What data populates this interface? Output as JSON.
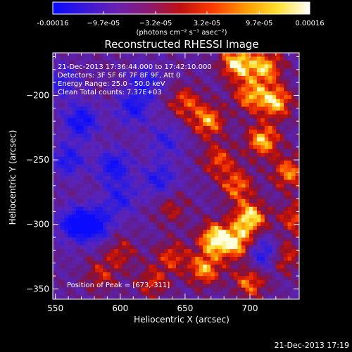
{
  "colorbar": {
    "tick_labels": [
      "-0.00016",
      "−9.7e-05",
      "−3.2e-05",
      "3.2e-05",
      "9.7e-05",
      "0.00016"
    ],
    "tick_values": [
      -0.00016,
      -9.7e-05,
      -3.2e-05,
      3.2e-05,
      9.7e-05,
      0.00016
    ],
    "range": [
      -0.00016,
      0.00016
    ],
    "units_label": "(photons cm⁻² s⁻¹ asec⁻²)",
    "colors": [
      "#0a0aff",
      "#3a18d8",
      "#6a20b0",
      "#8c1a70",
      "#c01010",
      "#ff3c00",
      "#ff9a00",
      "#ffe030",
      "#ffffff"
    ]
  },
  "chart_data": {
    "type": "heatmap",
    "title": "Reconstructed RHESSI Image",
    "xlabel": "Heliocentric X (arcsec)",
    "ylabel": "Heliocentric Y (arcsec)",
    "xlim": [
      548,
      738
    ],
    "ylim": [
      -358,
      -167
    ],
    "x_ticks": [
      550,
      600,
      650,
      700
    ],
    "y_ticks": [
      -200,
      -250,
      -300,
      -350
    ],
    "x_tick_labels": [
      "550",
      "600",
      "650",
      "700"
    ],
    "y_tick_labels": [
      "−200",
      "−250",
      "−300",
      "−350"
    ],
    "annotations": [
      "21-Dec-2013 17:36:44.000 to 17:42:10.000",
      "Detectors: 3F 5F 6F 7F 8F 9F, Att 0",
      "Energy Range: 25.0 - 50.0 keV",
      "Clean     Total counts: 7.37E+03"
    ],
    "peak_label": "Position of Peak = [673,-311]",
    "peak": [
      673,
      -311
    ],
    "hot_spots": [
      {
        "x": 690,
        "y": -175,
        "v": 1.0
      },
      {
        "x": 712,
        "y": -178,
        "v": 0.85
      },
      {
        "x": 720,
        "y": -205,
        "v": 0.9
      },
      {
        "x": 700,
        "y": -200,
        "v": 0.75
      },
      {
        "x": 668,
        "y": -220,
        "v": 0.8
      },
      {
        "x": 650,
        "y": -205,
        "v": 0.6
      },
      {
        "x": 710,
        "y": -235,
        "v": 0.9
      },
      {
        "x": 730,
        "y": -260,
        "v": 0.75
      },
      {
        "x": 690,
        "y": -270,
        "v": 0.7
      },
      {
        "x": 676,
        "y": -250,
        "v": 0.6
      },
      {
        "x": 700,
        "y": -295,
        "v": 1.0
      },
      {
        "x": 673,
        "y": -311,
        "v": 1.0
      },
      {
        "x": 690,
        "y": -315,
        "v": 0.85
      },
      {
        "x": 725,
        "y": -325,
        "v": 0.7
      },
      {
        "x": 665,
        "y": -335,
        "v": 0.8
      },
      {
        "x": 700,
        "y": -345,
        "v": 0.7
      },
      {
        "x": 640,
        "y": -325,
        "v": 0.55
      },
      {
        "x": 625,
        "y": -345,
        "v": 0.5
      },
      {
        "x": 585,
        "y": -340,
        "v": 0.45
      },
      {
        "x": 600,
        "y": -322,
        "v": 0.45
      },
      {
        "x": 640,
        "y": -288,
        "v": 0.4
      },
      {
        "x": 735,
        "y": -295,
        "v": 0.6
      }
    ],
    "cold_spots": [
      {
        "x": 570,
        "y": -220,
        "v": -0.9
      },
      {
        "x": 580,
        "y": -300,
        "v": -1.0
      },
      {
        "x": 565,
        "y": -300,
        "v": -0.9
      },
      {
        "x": 610,
        "y": -210,
        "v": -0.7
      },
      {
        "x": 595,
        "y": -255,
        "v": -0.8
      },
      {
        "x": 620,
        "y": -190,
        "v": -0.6
      },
      {
        "x": 630,
        "y": -265,
        "v": -0.65
      },
      {
        "x": 560,
        "y": -250,
        "v": -0.7
      },
      {
        "x": 600,
        "y": -280,
        "v": -0.6
      },
      {
        "x": 635,
        "y": -235,
        "v": -0.5
      },
      {
        "x": 712,
        "y": -323,
        "v": -0.85
      },
      {
        "x": 555,
        "y": -190,
        "v": -0.55
      }
    ]
  },
  "footer": {
    "timestamp": "21-Dec-2013 17:19"
  }
}
